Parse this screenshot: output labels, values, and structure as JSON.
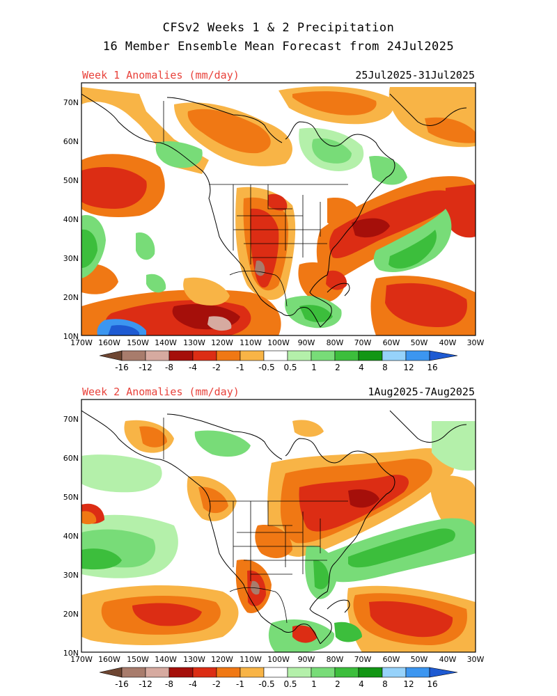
{
  "title": {
    "line1": "CFSv2 Weeks 1 & 2 Precipitation",
    "line2": "16 Member Ensemble Mean Forecast from 24Jul2025"
  },
  "panels": [
    {
      "id": "week1",
      "label": "Week 1 Anomalies (mm/day)",
      "dates": "25Jul2025-31Jul2025"
    },
    {
      "id": "week2",
      "label": "Week 2 Anomalies (mm/day)",
      "dates": "1Aug2025-7Aug2025"
    }
  ],
  "map": {
    "lat_labels": [
      "70N",
      "60N",
      "50N",
      "40N",
      "30N",
      "20N",
      "10N"
    ],
    "lon_labels": [
      "170W",
      "160W",
      "150W",
      "140W",
      "130W",
      "120W",
      "110W",
      "100W",
      "90W",
      "80W",
      "70W",
      "60W",
      "50W",
      "40W",
      "30W"
    ]
  },
  "colorbar": {
    "labels": [
      "-16",
      "-12",
      "-8",
      "-4",
      "-2",
      "-1",
      "-0.5",
      "0.5",
      "1",
      "2",
      "4",
      "8",
      "12",
      "16"
    ],
    "colors": [
      "#6e4632",
      "#a87c6c",
      "#d6aaa0",
      "#a50f0a",
      "#dc2d14",
      "#f07814",
      "#f8b446",
      "#ffffff",
      "#b4f0aa",
      "#78dc78",
      "#3cbe3c",
      "#129614",
      "#96d2fa",
      "#3c96f0",
      "#1e5ad2"
    ]
  }
}
